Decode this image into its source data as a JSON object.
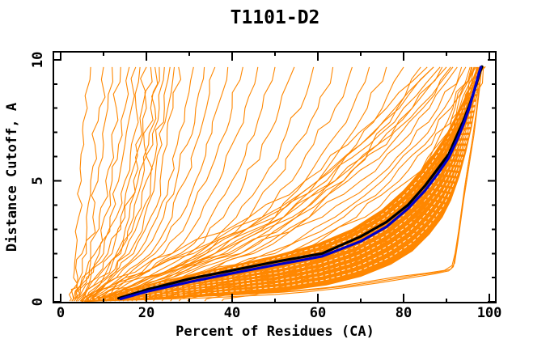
{
  "chart_data": {
    "type": "line",
    "title": "T1101-D2",
    "xlabel": "Percent of Residues (CA)",
    "ylabel": "Distance Cutoff, A",
    "xlim": [
      -1.7,
      101.5
    ],
    "ylim": [
      -0.03,
      10.33
    ],
    "grid": false,
    "legend": "none",
    "x_major_ticks": [
      0,
      20,
      40,
      60,
      80,
      100
    ],
    "x_major_tick_labels": [
      "0",
      "20",
      "40",
      "60",
      "80",
      "100"
    ],
    "x_minor_ticks": [
      10,
      30,
      50,
      70,
      90
    ],
    "y_major_ticks": [
      0,
      5,
      10
    ],
    "y_major_tick_labels": [
      "0",
      "5",
      "10"
    ],
    "y_minor_ticks": [
      1,
      2,
      3,
      4,
      6,
      7,
      8,
      9
    ],
    "colors": {
      "ensemble_orange": "#ff8700",
      "reference_black": "#000000",
      "reference_blue": "#0000cc",
      "axis": "#000000",
      "background": "#ffffff"
    },
    "reference_curves": [
      {
        "name": "reference-curve-black",
        "color": "#000000",
        "width": 3.2,
        "points": [
          [
            13.5,
            0.15
          ],
          [
            20,
            0.5
          ],
          [
            30,
            0.95
          ],
          [
            40,
            1.3
          ],
          [
            50,
            1.65
          ],
          [
            61,
            2.0
          ],
          [
            70,
            2.7
          ],
          [
            76,
            3.3
          ],
          [
            81,
            4.0
          ],
          [
            85,
            4.8
          ],
          [
            88,
            5.5
          ],
          [
            90.5,
            6.1
          ],
          [
            92.5,
            6.9
          ],
          [
            94,
            7.5
          ],
          [
            95.5,
            8.2
          ],
          [
            96.8,
            8.9
          ],
          [
            97.8,
            9.5
          ],
          [
            98.3,
            9.72
          ]
        ]
      },
      {
        "name": "reference-curve-blue",
        "color": "#0000cc",
        "width": 3.2,
        "points": [
          [
            14,
            0.12
          ],
          [
            20,
            0.42
          ],
          [
            30,
            0.82
          ],
          [
            40,
            1.18
          ],
          [
            50,
            1.52
          ],
          [
            61,
            1.88
          ],
          [
            70,
            2.5
          ],
          [
            76,
            3.1
          ],
          [
            81,
            3.85
          ],
          [
            85,
            4.6
          ],
          [
            88,
            5.3
          ],
          [
            90.5,
            5.95
          ],
          [
            92.5,
            6.7
          ],
          [
            94,
            7.35
          ],
          [
            95.3,
            8.0
          ],
          [
            96.5,
            8.75
          ],
          [
            97.5,
            9.4
          ],
          [
            98,
            9.7
          ]
        ]
      }
    ],
    "band": {
      "color": "#ff8700",
      "upper": [
        [
          4,
          0.05
        ],
        [
          8,
          0.2
        ],
        [
          14,
          0.45
        ],
        [
          20,
          0.7
        ],
        [
          30,
          1.1
        ],
        [
          40,
          1.5
        ],
        [
          50,
          1.9
        ],
        [
          60,
          2.4
        ],
        [
          68,
          3.0
        ],
        [
          75,
          3.8
        ],
        [
          80,
          4.6
        ],
        [
          84,
          5.4
        ],
        [
          87,
          6.1
        ],
        [
          90,
          6.9
        ],
        [
          92,
          7.6
        ],
        [
          94,
          8.3
        ],
        [
          96,
          9.1
        ],
        [
          97.5,
          9.68
        ],
        [
          99,
          9.7
        ]
      ],
      "lower": [
        [
          4,
          0.0
        ],
        [
          12,
          0.06
        ],
        [
          25,
          0.15
        ],
        [
          40,
          0.3
        ],
        [
          52,
          0.45
        ],
        [
          62,
          0.7
        ],
        [
          70,
          1.05
        ],
        [
          77,
          1.55
        ],
        [
          82,
          2.1
        ],
        [
          86,
          2.8
        ],
        [
          89,
          3.5
        ],
        [
          91,
          4.2
        ],
        [
          93,
          5.2
        ],
        [
          94.5,
          6.2
        ],
        [
          95.8,
          7.2
        ],
        [
          96.8,
          8.2
        ],
        [
          97.6,
          9.0
        ],
        [
          98.2,
          9.55
        ],
        [
          99,
          9.7
        ]
      ]
    },
    "texture": {
      "color": "#ffffff",
      "dash": "4 3",
      "fractions": [
        0.12,
        0.22,
        0.32,
        0.42,
        0.52,
        0.62,
        0.72,
        0.82,
        0.92
      ]
    },
    "ensemble": {
      "color": "#ff8700",
      "width": 1.1,
      "seed": 7,
      "y_levels": [
        0.12,
        1,
        2,
        3.5,
        5,
        6.5,
        8,
        9.7
      ],
      "curves_x": [
        [
          2.5,
          3,
          3.5,
          4.2,
          4.8,
          5.4,
          6.2,
          7
        ],
        [
          3,
          4,
          5,
          6,
          7,
          8,
          9,
          10
        ],
        [
          3,
          4.5,
          6,
          7.5,
          8.7,
          10,
          11,
          12
        ],
        [
          3.5,
          5,
          7,
          9,
          10.5,
          12,
          13,
          14
        ],
        [
          3,
          5.5,
          8,
          10.2,
          12,
          13.5,
          15,
          16
        ],
        [
          4,
          6,
          9,
          11.5,
          13.5,
          15,
          16.5,
          17.5
        ],
        [
          3.5,
          6.5,
          10,
          13,
          15,
          16.5,
          17.6,
          18.5
        ],
        [
          4,
          7,
          11,
          14,
          16,
          17.5,
          19,
          20
        ],
        [
          4.5,
          8,
          12,
          15,
          17,
          18.5,
          20,
          21
        ],
        [
          5,
          9,
          13,
          16,
          18,
          19.5,
          21,
          22
        ],
        [
          4,
          8.5,
          13.5,
          17,
          19,
          20.5,
          22,
          23
        ],
        [
          5,
          10,
          14,
          17.5,
          20,
          21.5,
          23,
          24.2
        ],
        [
          5.5,
          10.5,
          15,
          18.5,
          21,
          22.5,
          24.2,
          25.5
        ],
        [
          6,
          11,
          16,
          19.5,
          22,
          23.6,
          25,
          26.5
        ],
        [
          5,
          11.5,
          17,
          21,
          23.2,
          24.8,
          26.2,
          27.5
        ],
        [
          6,
          12,
          18,
          22.5,
          25.2,
          27.2,
          29,
          31
        ],
        [
          6,
          13,
          19,
          24,
          27,
          29.5,
          31.5,
          33.5
        ],
        [
          7,
          14,
          21,
          26,
          29,
          31.5,
          34,
          36
        ],
        [
          7,
          15,
          22,
          28,
          31.5,
          34,
          36.5,
          39
        ],
        [
          8,
          16,
          24,
          30,
          34,
          37,
          40,
          42.5
        ],
        [
          8,
          17,
          26,
          32.5,
          37,
          40,
          43,
          46
        ],
        [
          9,
          18,
          28,
          35,
          40,
          43.5,
          47,
          50
        ],
        [
          9,
          20,
          30,
          38,
          43,
          47,
          51,
          54.5
        ],
        [
          10,
          21,
          32,
          41,
          47,
          51.5,
          56,
          59
        ],
        [
          10,
          22,
          34,
          44,
          50,
          55,
          60,
          63.5
        ],
        [
          11,
          24,
          36,
          47,
          54,
          59,
          64,
          68
        ],
        [
          11,
          25,
          38,
          50,
          57,
          62.5,
          68,
          72
        ],
        [
          12,
          26,
          40,
          52,
          60,
          66,
          71.5,
          76
        ],
        [
          12,
          28,
          42,
          55,
          63,
          69,
          75,
          80
        ],
        [
          13,
          29,
          44,
          58,
          66,
          72.5,
          78.5,
          84
        ],
        [
          9,
          20,
          33,
          48,
          60,
          70,
          79,
          87
        ],
        [
          10,
          22,
          36,
          52,
          64,
          74,
          82,
          89
        ],
        [
          11,
          24,
          39,
          55,
          67,
          77,
          84.5,
          91
        ],
        [
          12,
          26,
          42,
          58,
          70,
          79,
          86,
          92.5
        ],
        [
          13,
          28,
          45,
          61,
          73,
          81.5,
          88,
          93.5
        ],
        [
          14,
          30,
          48,
          64,
          75,
          83,
          89.5,
          94.5
        ],
        [
          15,
          32,
          50,
          66,
          77,
          85,
          91,
          95.5
        ],
        [
          16,
          34,
          53,
          69,
          79,
          86.5,
          92,
          96
        ],
        [
          17,
          36,
          55,
          71,
          81,
          88,
          93,
          96.5
        ],
        [
          18,
          38,
          58,
          73,
          83,
          89,
          93.5,
          97
        ],
        [
          20,
          40,
          60,
          75,
          84.5,
          90,
          94,
          97.3
        ],
        [
          22,
          43,
          62,
          77,
          86,
          91,
          94.5,
          97.7
        ],
        [
          24,
          45,
          64,
          78,
          87,
          91.5,
          95,
          98
        ],
        [
          26,
          48,
          66,
          80,
          88,
          92,
          95.5,
          98.3
        ],
        [
          28,
          50,
          68,
          81,
          89,
          93,
          96,
          98.6
        ],
        [
          5,
          13,
          26,
          44,
          57,
          67,
          76,
          85.5
        ],
        [
          6,
          15,
          29,
          47,
          60,
          70,
          78,
          87
        ],
        [
          7,
          17,
          31,
          50,
          62,
          72,
          80,
          88.5
        ],
        [
          8,
          19,
          34,
          52,
          64,
          74,
          82,
          90
        ],
        [
          9,
          21,
          36,
          54,
          66,
          76,
          83.5,
          91.5
        ],
        [
          30,
          52,
          68,
          80,
          86.5,
          90.5,
          93.5,
          96.8
        ],
        [
          34,
          55,
          70,
          81.5,
          87.5,
          91.5,
          94,
          97.2
        ],
        [
          38,
          58,
          72,
          83,
          88.5,
          92,
          94.5,
          97.6
        ],
        [
          26,
          48,
          65,
          78,
          85,
          89.5,
          92.5,
          96.4
        ],
        [
          20,
          42,
          60,
          74,
          82,
          87.5,
          91.5,
          95.8
        ]
      ]
    },
    "outlier_curves": [
      {
        "name": "outlier-curve-1",
        "points": [
          [
            5,
            0.04
          ],
          [
            18,
            0.12
          ],
          [
            32,
            0.22
          ],
          [
            45,
            0.33
          ],
          [
            52,
            0.4
          ],
          [
            60,
            0.52
          ],
          [
            68,
            0.68
          ],
          [
            76,
            0.9
          ],
          [
            83,
            1.1
          ],
          [
            88,
            1.22
          ],
          [
            91,
            1.35
          ],
          [
            91.9,
            1.6
          ],
          [
            92.6,
            2.4
          ],
          [
            93.3,
            3.3
          ],
          [
            94,
            4.2
          ],
          [
            94.8,
            5.1
          ],
          [
            95.6,
            6.0
          ],
          [
            96.4,
            6.9
          ],
          [
            97.1,
            7.9
          ],
          [
            97.7,
            8.8
          ],
          [
            98.1,
            9.55
          ]
        ]
      },
      {
        "name": "outlier-curve-2",
        "points": [
          [
            5.5,
            0.02
          ],
          [
            20,
            0.09
          ],
          [
            36,
            0.18
          ],
          [
            50,
            0.3
          ],
          [
            58,
            0.42
          ],
          [
            66,
            0.58
          ],
          [
            74,
            0.78
          ],
          [
            81,
            0.98
          ],
          [
            87,
            1.15
          ],
          [
            90.5,
            1.28
          ],
          [
            91.6,
            1.45
          ],
          [
            92.3,
            2.2
          ],
          [
            93,
            3.1
          ],
          [
            93.7,
            4.0
          ],
          [
            94.5,
            5.0
          ],
          [
            95.3,
            5.9
          ],
          [
            96.1,
            6.8
          ],
          [
            96.9,
            7.8
          ],
          [
            97.5,
            8.7
          ],
          [
            98,
            9.5
          ]
        ]
      },
      {
        "name": "outlier-curve-3",
        "points": [
          [
            6,
            0.06
          ],
          [
            22,
            0.16
          ],
          [
            40,
            0.28
          ],
          [
            54,
            0.45
          ],
          [
            63,
            0.6
          ],
          [
            71,
            0.82
          ],
          [
            79,
            1.05
          ],
          [
            85,
            1.18
          ],
          [
            89.5,
            1.3
          ],
          [
            91.3,
            1.5
          ],
          [
            92,
            2.0
          ],
          [
            92.8,
            2.9
          ],
          [
            93.5,
            3.8
          ],
          [
            94.2,
            4.7
          ],
          [
            95,
            5.6
          ],
          [
            95.8,
            6.4
          ]
        ]
      }
    ]
  }
}
